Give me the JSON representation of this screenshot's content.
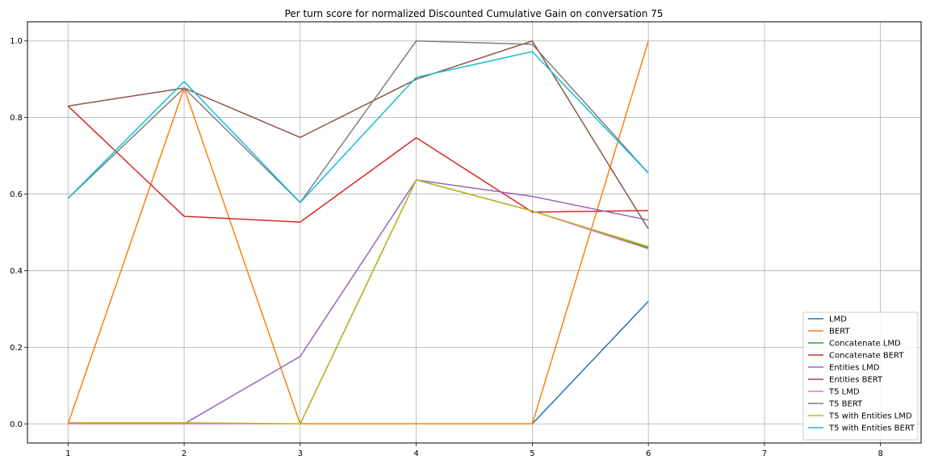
{
  "chart_data": {
    "type": "line",
    "title": "Per turn score for normalized Discounted Cumulative Gain on conversation 75",
    "xlabel": "",
    "ylabel": "",
    "xlim": [
      0.65,
      8.35
    ],
    "ylim": [
      -0.05,
      1.05
    ],
    "xticks": [
      1,
      2,
      3,
      4,
      5,
      6,
      7,
      8
    ],
    "yticks": [
      0.0,
      0.2,
      0.4,
      0.6,
      0.8,
      1.0
    ],
    "ytick_labels": [
      "0.0",
      "0.2",
      "0.4",
      "0.6",
      "0.8",
      "1.0"
    ],
    "grid": true,
    "legend_position": "bottom-right",
    "x": [
      1,
      2,
      3,
      4,
      5,
      6
    ],
    "series": [
      {
        "name": "LMD",
        "color": "#1f77b4",
        "values": [
          0.0,
          0.0,
          0.0,
          0.0,
          0.0,
          0.32
        ]
      },
      {
        "name": "BERT",
        "color": "#ff7f0e",
        "values": [
          0.0,
          0.877,
          0.0,
          0.0,
          0.0,
          1.0
        ]
      },
      {
        "name": "Concatenate LMD",
        "color": "#2ca02c",
        "values": [
          0.0,
          0.0,
          0.0,
          0.637,
          0.556,
          0.46
        ]
      },
      {
        "name": "Concatenate BERT",
        "color": "#d62728",
        "values": [
          0.83,
          0.542,
          0.527,
          0.747,
          0.553,
          0.557
        ]
      },
      {
        "name": "Entities LMD",
        "color": "#9467bd",
        "values": [
          0.0,
          0.0,
          0.176,
          0.637,
          0.594,
          0.532
        ]
      },
      {
        "name": "Entities BERT",
        "color": "#8c564b",
        "values": [
          0.83,
          0.877,
          0.748,
          0.9,
          1.0,
          0.509
        ]
      },
      {
        "name": "T5 LMD",
        "color": "#e377c2",
        "values": [
          0.0,
          0.0,
          0.0,
          0.637,
          0.556,
          0.457
        ]
      },
      {
        "name": "T5 BERT",
        "color": "#7f7f7f",
        "values": [
          0.589,
          0.877,
          0.578,
          1.0,
          0.991,
          0.655
        ]
      },
      {
        "name": "T5 with Entities LMD",
        "color": "#bcbd22",
        "values": [
          0.003,
          0.003,
          0.0,
          0.637,
          0.556,
          0.463
        ]
      },
      {
        "name": "T5 with Entities BERT",
        "color": "#17becf",
        "values": [
          0.589,
          0.894,
          0.578,
          0.905,
          0.972,
          0.655
        ]
      }
    ]
  }
}
